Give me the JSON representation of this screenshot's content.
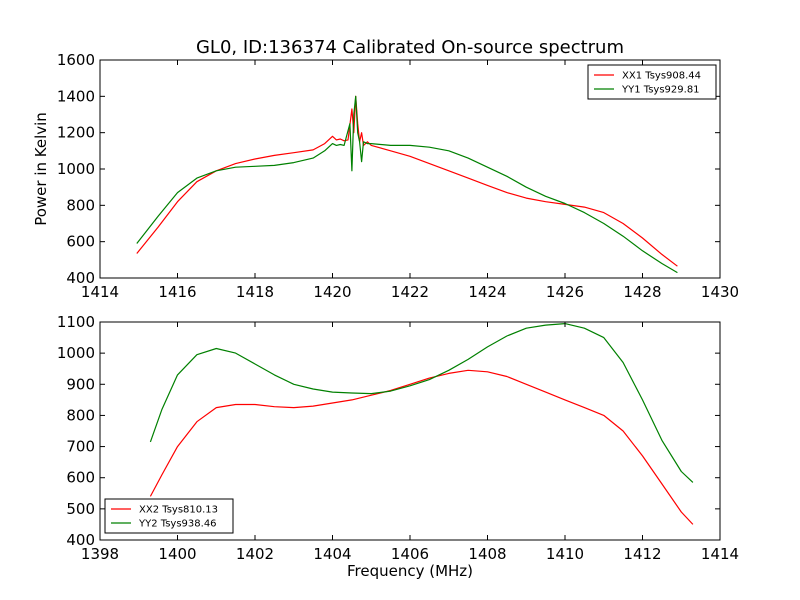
{
  "figure": {
    "title": "GL0, ID:136374 Calibrated On-source spectrum",
    "xlabel": "Frequency (MHz)",
    "ylabel": "Power in Kelvin"
  },
  "chart_data": [
    {
      "type": "line",
      "title": "GL0, ID:136374 Calibrated On-source spectrum",
      "xlabel": "",
      "ylabel": "Power in Kelvin",
      "xlim": [
        1414,
        1430
      ],
      "ylim": [
        400,
        1600
      ],
      "xticks": [
        "1414",
        "1416",
        "1418",
        "1420",
        "1422",
        "1424",
        "1426",
        "1428",
        "1430"
      ],
      "yticks": [
        "400",
        "600",
        "800",
        "1000",
        "1200",
        "1400",
        "1600"
      ],
      "grid": false,
      "legend_position": "top-right",
      "series": [
        {
          "name": "XX1 Tsys908.44",
          "color": "#ff0000",
          "x": [
            1414.95,
            1415.5,
            1416.0,
            1416.5,
            1417.0,
            1417.5,
            1418.0,
            1418.5,
            1419.0,
            1419.5,
            1419.8,
            1420.0,
            1420.1,
            1420.2,
            1420.3,
            1420.4,
            1420.5,
            1420.55,
            1420.6,
            1420.65,
            1420.7,
            1420.75,
            1420.8,
            1420.9,
            1421.0,
            1421.5,
            1422.0,
            1422.5,
            1423.0,
            1423.5,
            1424.0,
            1424.5,
            1425.0,
            1425.5,
            1426.0,
            1426.5,
            1427.0,
            1427.5,
            1428.0,
            1428.5,
            1428.9
          ],
          "y": [
            535,
            680,
            820,
            930,
            990,
            1030,
            1055,
            1075,
            1090,
            1105,
            1140,
            1180,
            1160,
            1165,
            1155,
            1160,
            1330,
            1200,
            1400,
            1250,
            1150,
            1200,
            1130,
            1150,
            1130,
            1100,
            1070,
            1030,
            990,
            950,
            910,
            870,
            840,
            820,
            805,
            790,
            760,
            700,
            620,
            530,
            465
          ]
        },
        {
          "name": "YY1 Tsys929.81",
          "color": "#008000",
          "x": [
            1414.95,
            1415.5,
            1416.0,
            1416.5,
            1417.0,
            1417.5,
            1418.0,
            1418.5,
            1419.0,
            1419.5,
            1419.8,
            1420.0,
            1420.1,
            1420.2,
            1420.3,
            1420.45,
            1420.5,
            1420.55,
            1420.6,
            1420.65,
            1420.7,
            1420.75,
            1420.8,
            1420.9,
            1421.0,
            1421.5,
            1422.0,
            1422.5,
            1423.0,
            1423.5,
            1424.0,
            1424.5,
            1425.0,
            1425.5,
            1426.0,
            1426.5,
            1427.0,
            1427.5,
            1428.0,
            1428.5,
            1428.9
          ],
          "y": [
            590,
            740,
            870,
            950,
            990,
            1010,
            1015,
            1020,
            1035,
            1060,
            1100,
            1140,
            1130,
            1135,
            1130,
            1250,
            990,
            1300,
            1400,
            1200,
            1150,
            1040,
            1150,
            1140,
            1140,
            1130,
            1130,
            1120,
            1100,
            1060,
            1010,
            960,
            900,
            850,
            810,
            760,
            700,
            630,
            550,
            480,
            430
          ]
        }
      ]
    },
    {
      "type": "line",
      "title": "",
      "xlabel": "Frequency (MHz)",
      "ylabel": "",
      "xlim": [
        1398,
        1414
      ],
      "ylim": [
        400,
        1100
      ],
      "xticks": [
        "1398",
        "1400",
        "1402",
        "1404",
        "1406",
        "1408",
        "1410",
        "1412",
        "1414"
      ],
      "yticks": [
        "400",
        "500",
        "600",
        "700",
        "800",
        "900",
        "1000",
        "1100"
      ],
      "grid": false,
      "legend_position": "bottom-left",
      "series": [
        {
          "name": "XX2 Tsys810.13",
          "color": "#ff0000",
          "x": [
            1399.3,
            1399.6,
            1400.0,
            1400.5,
            1401.0,
            1401.5,
            1402.0,
            1402.5,
            1403.0,
            1403.5,
            1404.0,
            1404.5,
            1405.0,
            1405.5,
            1406.0,
            1406.5,
            1407.0,
            1407.5,
            1408.0,
            1408.5,
            1409.0,
            1409.5,
            1410.0,
            1410.5,
            1411.0,
            1411.5,
            1412.0,
            1412.5,
            1413.0,
            1413.3
          ],
          "y": [
            540,
            610,
            700,
            780,
            825,
            835,
            835,
            828,
            825,
            830,
            840,
            850,
            865,
            880,
            900,
            920,
            935,
            945,
            940,
            925,
            900,
            875,
            850,
            825,
            800,
            750,
            670,
            580,
            490,
            450
          ]
        },
        {
          "name": "YY2 Tsys938.46",
          "color": "#008000",
          "x": [
            1399.3,
            1399.6,
            1400.0,
            1400.5,
            1401.0,
            1401.5,
            1402.0,
            1402.5,
            1403.0,
            1403.5,
            1404.0,
            1404.5,
            1405.0,
            1405.5,
            1406.0,
            1406.5,
            1407.0,
            1407.5,
            1408.0,
            1408.5,
            1409.0,
            1409.5,
            1410.0,
            1410.5,
            1411.0,
            1411.5,
            1412.0,
            1412.5,
            1413.0,
            1413.3
          ],
          "y": [
            715,
            820,
            930,
            995,
            1015,
            1000,
            965,
            930,
            900,
            885,
            875,
            872,
            870,
            878,
            895,
            915,
            945,
            980,
            1020,
            1055,
            1080,
            1090,
            1095,
            1080,
            1050,
            970,
            850,
            720,
            620,
            585
          ]
        }
      ]
    }
  ]
}
